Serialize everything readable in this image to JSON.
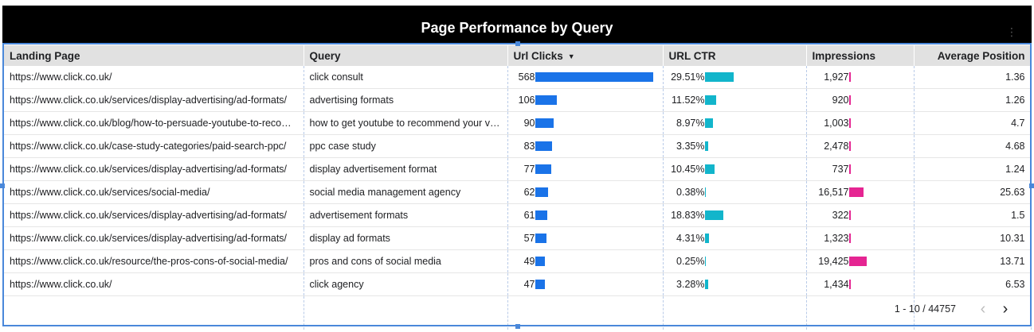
{
  "widget": {
    "title": "Page Performance by Query",
    "menu_icon": "more-vert-icon"
  },
  "colors": {
    "clicks_bar": "#1a73e8",
    "ctr_bar": "#12b5cb",
    "impressions_bar": "#e52592",
    "header_bg": "#e1e1e1",
    "title_bg": "#000000"
  },
  "table": {
    "columns": [
      "Landing Page",
      "Query",
      "Url Clicks",
      "URL CTR",
      "Impressions",
      "Average Position"
    ],
    "sort_indicator": "▼",
    "rows": [
      {
        "page": "https://www.click.co.uk/",
        "query": "click consult",
        "clicks": "568",
        "ctr": "29.51%",
        "impressions": "1,927",
        "position": "1.36",
        "clicks_val": 568,
        "ctr_val": 29.51,
        "impr_val": 1927
      },
      {
        "page": "https://www.click.co.uk/services/display-advertising/ad-formats/",
        "query": "advertising formats",
        "clicks": "106",
        "ctr": "11.52%",
        "impressions": "920",
        "position": "1.26",
        "clicks_val": 106,
        "ctr_val": 11.52,
        "impr_val": 920
      },
      {
        "page": "https://www.click.co.uk/blog/how-to-persuade-youtube-to-recommend-your-videos/",
        "query": "how to get youtube to recommend your videos",
        "clicks": "90",
        "ctr": "8.97%",
        "impressions": "1,003",
        "position": "4.7",
        "clicks_val": 90,
        "ctr_val": 8.97,
        "impr_val": 1003
      },
      {
        "page": "https://www.click.co.uk/case-study-categories/paid-search-ppc/",
        "query": "ppc case study",
        "clicks": "83",
        "ctr": "3.35%",
        "impressions": "2,478",
        "position": "4.68",
        "clicks_val": 83,
        "ctr_val": 3.35,
        "impr_val": 2478
      },
      {
        "page": "https://www.click.co.uk/services/display-advertising/ad-formats/",
        "query": "display advertisement format",
        "clicks": "77",
        "ctr": "10.45%",
        "impressions": "737",
        "position": "1.24",
        "clicks_val": 77,
        "ctr_val": 10.45,
        "impr_val": 737
      },
      {
        "page": "https://www.click.co.uk/services/social-media/",
        "query": "social media management agency",
        "clicks": "62",
        "ctr": "0.38%",
        "impressions": "16,517",
        "position": "25.63",
        "clicks_val": 62,
        "ctr_val": 0.38,
        "impr_val": 16517
      },
      {
        "page": "https://www.click.co.uk/services/display-advertising/ad-formats/",
        "query": "advertisement formats",
        "clicks": "61",
        "ctr": "18.83%",
        "impressions": "322",
        "position": "1.5",
        "clicks_val": 61,
        "ctr_val": 18.83,
        "impr_val": 322
      },
      {
        "page": "https://www.click.co.uk/services/display-advertising/ad-formats/",
        "query": "display ad formats",
        "clicks": "57",
        "ctr": "4.31%",
        "impressions": "1,323",
        "position": "10.31",
        "clicks_val": 57,
        "ctr_val": 4.31,
        "impr_val": 1323
      },
      {
        "page": "https://www.click.co.uk/resource/the-pros-cons-of-social-media/",
        "query": "pros and cons of social media",
        "clicks": "49",
        "ctr": "0.25%",
        "impressions": "19,425",
        "position": "13.71",
        "clicks_val": 49,
        "ctr_val": 0.25,
        "impr_val": 19425
      },
      {
        "page": "https://www.click.co.uk/",
        "query": "click agency",
        "clicks": "47",
        "ctr": "3.28%",
        "impressions": "1,434",
        "position": "6.53",
        "clicks_val": 47,
        "ctr_val": 3.28,
        "impr_val": 1434
      }
    ]
  },
  "pager": {
    "range": "1 - 10 / 44757",
    "prev_icon": "chevron-left-icon",
    "next_icon": "chevron-right-icon"
  }
}
